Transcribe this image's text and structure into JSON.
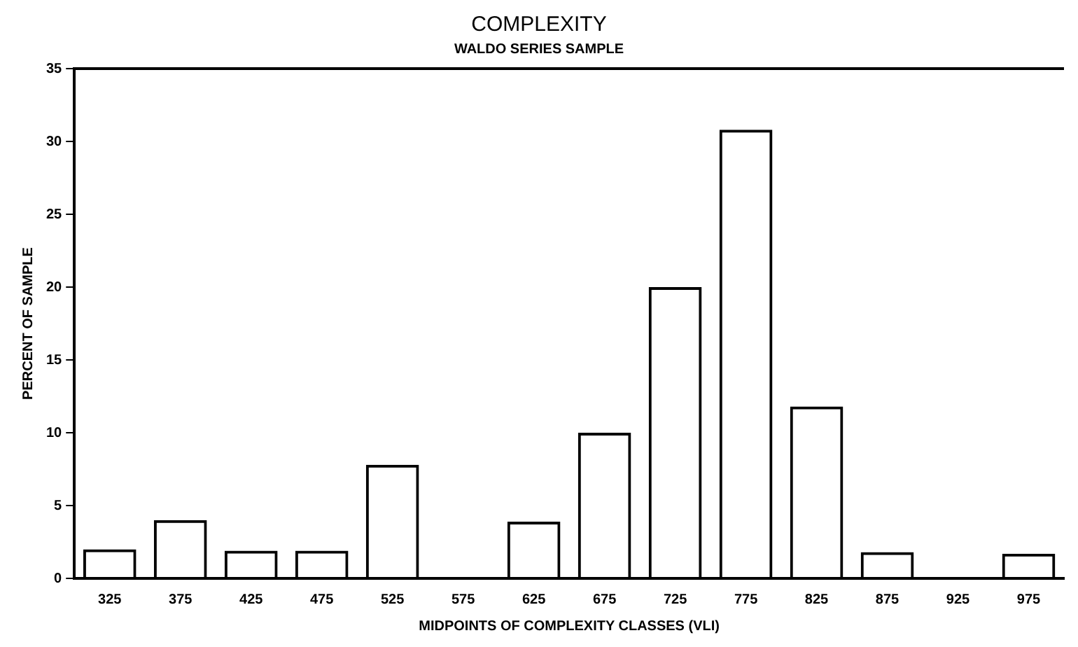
{
  "chart_data": {
    "type": "bar",
    "title": "COMPLEXITY",
    "subtitle": "WALDO SERIES SAMPLE",
    "xlabel": "MIDPOINTS OF COMPLEXITY CLASSES (VLI)",
    "ylabel": "PERCENT OF SAMPLE",
    "categories": [
      "325",
      "375",
      "425",
      "475",
      "525",
      "575",
      "625",
      "675",
      "725",
      "775",
      "825",
      "875",
      "925",
      "975"
    ],
    "values": [
      2.0,
      4.0,
      1.9,
      1.9,
      7.8,
      0,
      3.9,
      10.0,
      20.0,
      30.8,
      11.8,
      1.8,
      0,
      1.7
    ],
    "color": "#000000",
    "ylim": [
      0,
      35
    ],
    "yticks": [
      0,
      5,
      10,
      15,
      20,
      25,
      30,
      35
    ],
    "grid": false,
    "legend": false
  }
}
